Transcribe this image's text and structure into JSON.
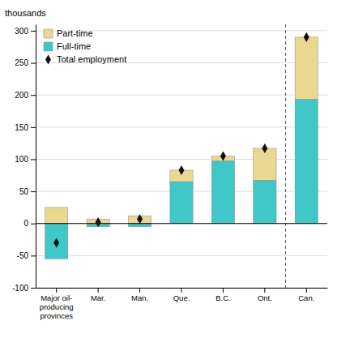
{
  "chart_data": {
    "type": "bar",
    "stacked": true,
    "ylabel": "thousands",
    "categories": [
      "Major oil-\nproducing\nprovinces",
      "Mar.",
      "Man.",
      "Que.",
      "B.C.",
      "Ont.",
      "Can."
    ],
    "series": [
      {
        "name": "Part-time",
        "color": "#E8D890",
        "values": [
          25,
          7,
          12,
          18,
          8,
          50,
          97
        ]
      },
      {
        "name": "Full-time",
        "color": "#40C8C8",
        "values": [
          -55,
          -5,
          -5,
          65,
          97,
          67,
          193
        ]
      },
      {
        "name": "Total employment",
        "type": "scatter",
        "marker": "diamond",
        "color": "#111111",
        "values": [
          -30,
          2,
          7,
          83,
          105,
          117,
          290
        ]
      }
    ],
    "ylim": [
      -100,
      310
    ],
    "yticks": [
      -100,
      -50,
      0,
      50,
      100,
      150,
      200,
      250,
      300
    ],
    "grid": true,
    "legend": "upper left"
  }
}
